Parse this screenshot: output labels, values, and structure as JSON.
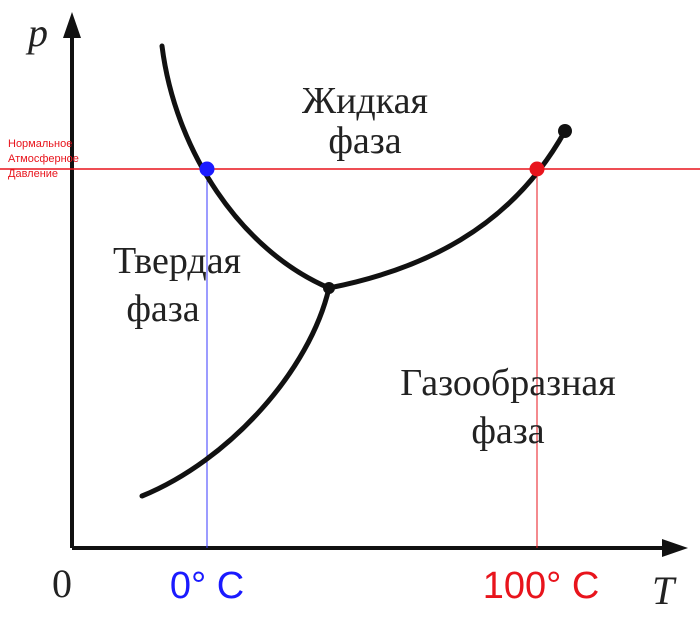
{
  "axes": {
    "y_label": "p",
    "x_label": "T",
    "origin_label": "0"
  },
  "pressure_label": [
    "Нормальное",
    "Атмосферное",
    "Давление"
  ],
  "phases": {
    "liquid": [
      "Жидкая",
      "фаза"
    ],
    "solid": [
      "Твердая",
      "фаза"
    ],
    "gas": [
      "Газообразная",
      "фаза"
    ]
  },
  "ticks": {
    "freeze": "0° C",
    "boil": "100° C"
  },
  "colors": {
    "axis": "#111111",
    "curve": "#111111",
    "pressure_line": "#e8141c",
    "freeze": "#1a1aff",
    "boil": "#e8141c"
  }
}
